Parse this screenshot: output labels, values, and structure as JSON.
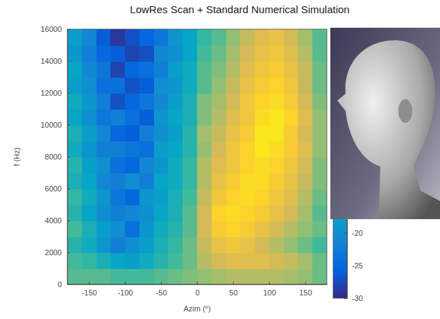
{
  "chart_data": {
    "type": "heatmap",
    "title": "LowRes Scan + Standard Numerical Simulation",
    "x_label": "Azim (°)",
    "y_label": "f (Hz)",
    "xlim": [
      -180,
      180
    ],
    "ylim": [
      0,
      16000
    ],
    "xticks": [
      -150,
      -100,
      -50,
      0,
      50,
      100,
      150
    ],
    "yticks": [
      0,
      2000,
      4000,
      6000,
      8000,
      10000,
      12000,
      14000,
      16000
    ],
    "x": [
      -170,
      -150,
      -130,
      -110,
      -90,
      -70,
      -50,
      -30,
      -10,
      10,
      30,
      50,
      70,
      90,
      110,
      130,
      150,
      170
    ],
    "y": [
      500,
      1500,
      2500,
      3500,
      4500,
      5500,
      6500,
      7500,
      8500,
      9500,
      10500,
      11500,
      12500,
      13500,
      14500,
      15500
    ],
    "z": [
      [
        -11,
        -11,
        -11,
        -12,
        -12,
        -12,
        -11,
        -10,
        -9,
        -8,
        -7,
        -6,
        -6,
        -6,
        -6,
        -7,
        -8,
        -10
      ],
      [
        -12,
        -13,
        -15,
        -17,
        -18,
        -16,
        -14,
        -12,
        -10,
        -6,
        -4,
        -3,
        -3,
        -3,
        -4,
        -5,
        -7,
        -10
      ],
      [
        -14,
        -16,
        -19,
        -22,
        -20,
        -18,
        -15,
        -13,
        -10,
        -5,
        -2,
        -1,
        -2,
        -4,
        -6,
        -8,
        -10,
        -12
      ],
      [
        -12,
        -15,
        -18,
        -20,
        -24,
        -19,
        -16,
        -14,
        -11,
        -4,
        0,
        1,
        0,
        -2,
        -4,
        -6,
        -8,
        -10
      ],
      [
        -14,
        -17,
        -20,
        -22,
        -21,
        -20,
        -17,
        -15,
        -11,
        -4,
        1,
        2,
        1,
        0,
        -2,
        -4,
        -7,
        -11
      ],
      [
        -13,
        -16,
        -19,
        -23,
        -25,
        -19,
        -18,
        -15,
        -12,
        -5,
        -1,
        1,
        2,
        1,
        -1,
        -3,
        -6,
        -10
      ],
      [
        -15,
        -17,
        -21,
        -22,
        -20,
        -22,
        -17,
        -16,
        -13,
        -6,
        -2,
        0,
        2,
        2,
        0,
        -2,
        -5,
        -9
      ],
      [
        -14,
        -18,
        -20,
        -24,
        -25,
        -21,
        -19,
        -16,
        -13,
        -6,
        -3,
        -1,
        1,
        2,
        1,
        -1,
        -4,
        -9
      ],
      [
        -16,
        -19,
        -22,
        -22,
        -23,
        -24,
        -18,
        -17,
        -14,
        -8,
        -4,
        -1,
        1,
        3,
        2,
        0,
        -3,
        -8
      ],
      [
        -15,
        -18,
        -21,
        -25,
        -26,
        -22,
        -20,
        -18,
        -14,
        -7,
        -5,
        -2,
        0,
        3,
        3,
        0,
        -4,
        -8
      ],
      [
        -17,
        -20,
        -23,
        -22,
        -24,
        -26,
        -19,
        -17,
        -15,
        -9,
        -6,
        -3,
        -1,
        2,
        3,
        1,
        -3,
        -8
      ],
      [
        -16,
        -19,
        -22,
        -27,
        -25,
        -23,
        -21,
        -18,
        -15,
        -9,
        -7,
        -4,
        -1,
        1,
        2,
        0,
        -4,
        -9
      ],
      [
        -18,
        -20,
        -24,
        -24,
        -27,
        -26,
        -20,
        -19,
        -16,
        -11,
        -8,
        -5,
        -2,
        0,
        1,
        -1,
        -5,
        -10
      ],
      [
        -17,
        -21,
        -23,
        -28,
        -25,
        -24,
        -22,
        -18,
        -16,
        -11,
        -9,
        -6,
        -3,
        -1,
        0,
        -2,
        -5,
        -10
      ],
      [
        -19,
        -22,
        -25,
        -26,
        -28,
        -27,
        -21,
        -20,
        -17,
        -12,
        -10,
        -7,
        -4,
        -2,
        -1,
        -3,
        -6,
        -11
      ],
      [
        -18,
        -21,
        -26,
        -29,
        -27,
        -25,
        -23,
        -19,
        -17,
        -13,
        -11,
        -8,
        -5,
        -3,
        -2,
        -4,
        -7,
        -11
      ]
    ],
    "colorbar": {
      "range": [
        -30,
        5
      ],
      "ticks": [
        -30,
        -25,
        -20
      ]
    }
  }
}
